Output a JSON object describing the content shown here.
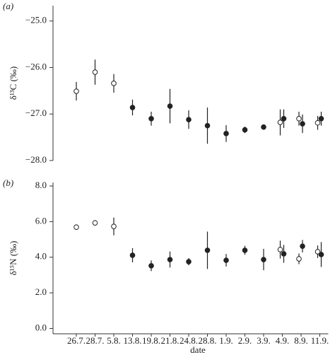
{
  "chart_data": [
    {
      "type": "scatter",
      "panel_label": "(a)",
      "ylabel": "δ¹³C (‰)",
      "ylim": [
        -28.0,
        -24.67
      ],
      "yticks": [
        {
          "value": -28,
          "label": "−28.0"
        },
        {
          "value": -27,
          "label": "−27.0"
        },
        {
          "value": -26,
          "label": "−26.0"
        },
        {
          "value": -25,
          "label": "−25.0"
        }
      ],
      "series": [
        {
          "marker": "open",
          "color": "#222",
          "values": [
            -26.51,
            -26.1,
            -26.34,
            null,
            null,
            null,
            null,
            null,
            null,
            null,
            null,
            -27.18,
            -27.1,
            -27.19
          ],
          "errors": [
            0.2,
            0.27,
            0.2,
            null,
            null,
            null,
            null,
            null,
            null,
            null,
            null,
            0.28,
            0.15,
            0.15
          ]
        },
        {
          "marker": "filled",
          "color": "#222",
          "values": [
            null,
            null,
            null,
            -26.86,
            -27.1,
            -26.83,
            -27.12,
            -27.25,
            -27.42,
            -27.34,
            -27.28,
            -27.1,
            -27.21,
            -27.1
          ],
          "errors": [
            null,
            null,
            null,
            0.17,
            0.15,
            0.37,
            0.2,
            0.39,
            0.18,
            0.07,
            0.05,
            0.2,
            0.2,
            0.15
          ]
        }
      ]
    },
    {
      "type": "scatter",
      "panel_label": "(b)",
      "ylabel": "δ¹⁵N (‰)",
      "xlabel": "date",
      "categories": [
        "26.7.",
        "28.7.",
        "5.8.",
        "13.8.",
        "19.8.",
        "21.8.",
        "24.8.",
        "28.8.",
        "1.9.",
        "2.9.",
        "3.9.",
        "4.9.",
        "8.9.",
        "11.9."
      ],
      "ylim": [
        -0.3,
        8.2
      ],
      "yticks": [
        {
          "value": 0,
          "label": "0.0"
        },
        {
          "value": 2,
          "label": "2.0"
        },
        {
          "value": 4,
          "label": "4.0"
        },
        {
          "value": 6,
          "label": "6.0"
        },
        {
          "value": 8,
          "label": "8.0"
        }
      ],
      "series": [
        {
          "marker": "open",
          "color": "#222",
          "values": [
            5.69,
            5.93,
            5.73,
            null,
            null,
            null,
            null,
            null,
            null,
            null,
            null,
            4.43,
            3.91,
            4.31
          ],
          "errors": [
            0.15,
            0.15,
            0.5,
            null,
            null,
            null,
            null,
            null,
            null,
            null,
            null,
            0.5,
            0.3,
            0.35
          ]
        },
        {
          "marker": "filled",
          "color": "#222",
          "values": [
            null,
            null,
            null,
            4.11,
            3.52,
            3.87,
            3.75,
            4.39,
            3.83,
            4.39,
            3.87,
            4.19,
            4.62,
            4.15
          ],
          "errors": [
            null,
            null,
            null,
            0.4,
            0.3,
            0.45,
            0.2,
            1.05,
            0.35,
            0.25,
            0.6,
            0.5,
            0.35,
            0.7
          ]
        }
      ]
    }
  ]
}
